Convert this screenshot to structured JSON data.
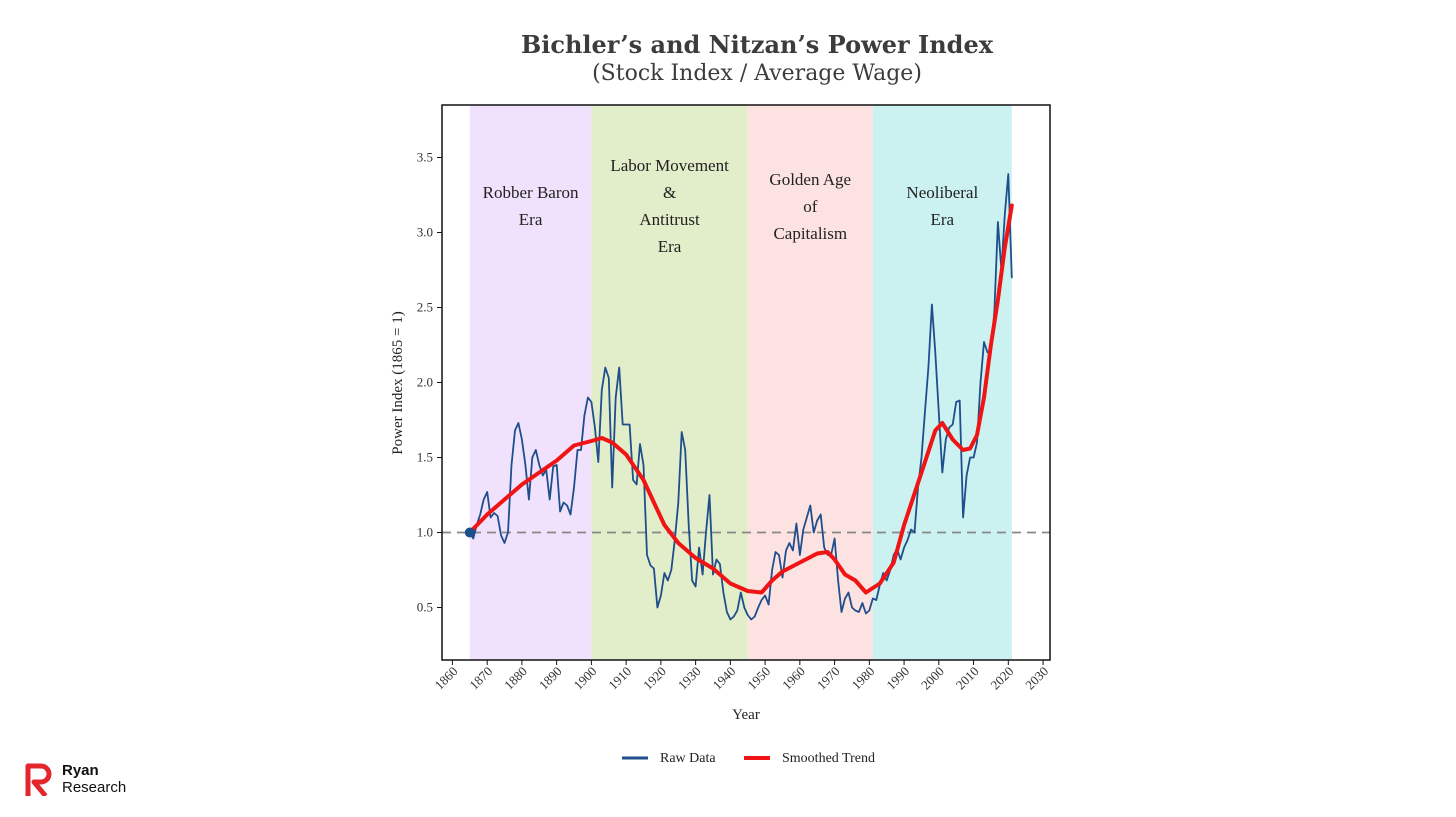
{
  "brand": {
    "name": "Ryan",
    "name2": "Research",
    "logo_icon": "ryan-research-r-logo-icon",
    "logo_color": "#e3262c"
  },
  "chart_data": {
    "type": "line",
    "title": "Bichler’s and Nitzan’s Power Index",
    "subtitle": "(Stock Index / Average Wage)",
    "xlabel": "Year",
    "ylabel": "Power Index (1865 = 1)",
    "xlim": [
      1857,
      2032
    ],
    "ylim": [
      0.15,
      3.85
    ],
    "x_ticks": [
      1860,
      1870,
      1880,
      1890,
      1900,
      1910,
      1920,
      1930,
      1940,
      1950,
      1960,
      1970,
      1980,
      1990,
      2000,
      2010,
      2020,
      2030
    ],
    "y_ticks": [
      0.5,
      1.0,
      1.5,
      2.0,
      2.5,
      3.0,
      3.5
    ],
    "y_tick_labels": [
      "0.5",
      "1.0",
      "1.5",
      "2.0",
      "2.5",
      "3.0",
      "3.5"
    ],
    "grid": false,
    "legend_position": "bottom",
    "reference_line": {
      "y": 1.0,
      "style": "dashed",
      "color": "#888888"
    },
    "start_marker": {
      "x": 1865,
      "y": 1.0,
      "color": "#1f4e8c"
    },
    "eras": [
      {
        "lines": [
          "Robber Baron",
          "Era"
        ],
        "start": 1865,
        "end": 1900,
        "color": "#f0e2fc"
      },
      {
        "lines": [
          "Labor Movement",
          "&",
          "Antitrust",
          "Era"
        ],
        "start": 1900,
        "end": 1945,
        "color": "#e2edca"
      },
      {
        "lines": [
          "Golden Age",
          "of",
          "Capitalism"
        ],
        "start": 1945,
        "end": 1981,
        "color": "#fde2e2"
      },
      {
        "lines": [
          "Neoliberal",
          "Era"
        ],
        "start": 1981,
        "end": 2021,
        "color": "#ccf1f1"
      }
    ],
    "series": [
      {
        "name": "Raw Data",
        "color": "#1f4e8c",
        "points": [
          [
            1865,
            1.0
          ],
          [
            1866,
            0.96
          ],
          [
            1867,
            1.05
          ],
          [
            1868,
            1.12
          ],
          [
            1869,
            1.22
          ],
          [
            1870,
            1.27
          ],
          [
            1871,
            1.1
          ],
          [
            1872,
            1.13
          ],
          [
            1873,
            1.11
          ],
          [
            1874,
            0.98
          ],
          [
            1875,
            0.93
          ],
          [
            1876,
            1.0
          ],
          [
            1877,
            1.45
          ],
          [
            1878,
            1.68
          ],
          [
            1879,
            1.73
          ],
          [
            1880,
            1.62
          ],
          [
            1881,
            1.45
          ],
          [
            1882,
            1.22
          ],
          [
            1883,
            1.5
          ],
          [
            1884,
            1.55
          ],
          [
            1885,
            1.45
          ],
          [
            1886,
            1.38
          ],
          [
            1887,
            1.42
          ],
          [
            1888,
            1.22
          ],
          [
            1889,
            1.44
          ],
          [
            1890,
            1.45
          ],
          [
            1891,
            1.14
          ],
          [
            1892,
            1.2
          ],
          [
            1893,
            1.18
          ],
          [
            1894,
            1.12
          ],
          [
            1895,
            1.3
          ],
          [
            1896,
            1.55
          ],
          [
            1897,
            1.55
          ],
          [
            1898,
            1.78
          ],
          [
            1899,
            1.9
          ],
          [
            1900,
            1.87
          ],
          [
            1901,
            1.7
          ],
          [
            1902,
            1.47
          ],
          [
            1903,
            1.95
          ],
          [
            1904,
            2.1
          ],
          [
            1905,
            2.03
          ],
          [
            1906,
            1.3
          ],
          [
            1907,
            1.9
          ],
          [
            1908,
            2.1
          ],
          [
            1909,
            1.72
          ],
          [
            1910,
            1.72
          ],
          [
            1911,
            1.72
          ],
          [
            1912,
            1.35
          ],
          [
            1913,
            1.32
          ],
          [
            1914,
            1.59
          ],
          [
            1915,
            1.45
          ],
          [
            1916,
            0.85
          ],
          [
            1917,
            0.78
          ],
          [
            1918,
            0.76
          ],
          [
            1919,
            0.5
          ],
          [
            1920,
            0.58
          ],
          [
            1921,
            0.73
          ],
          [
            1922,
            0.68
          ],
          [
            1923,
            0.75
          ],
          [
            1924,
            0.95
          ],
          [
            1925,
            1.2
          ],
          [
            1926,
            1.67
          ],
          [
            1927,
            1.55
          ],
          [
            1928,
            1.05
          ],
          [
            1929,
            0.68
          ],
          [
            1930,
            0.64
          ],
          [
            1931,
            0.9
          ],
          [
            1932,
            0.72
          ],
          [
            1933,
            1.0
          ],
          [
            1934,
            1.25
          ],
          [
            1935,
            0.72
          ],
          [
            1936,
            0.82
          ],
          [
            1937,
            0.79
          ],
          [
            1938,
            0.6
          ],
          [
            1939,
            0.47
          ],
          [
            1940,
            0.42
          ],
          [
            1941,
            0.44
          ],
          [
            1942,
            0.48
          ],
          [
            1943,
            0.6
          ],
          [
            1944,
            0.5
          ],
          [
            1945,
            0.45
          ],
          [
            1946,
            0.42
          ],
          [
            1947,
            0.44
          ],
          [
            1948,
            0.5
          ],
          [
            1949,
            0.55
          ],
          [
            1950,
            0.58
          ],
          [
            1951,
            0.52
          ],
          [
            1952,
            0.75
          ],
          [
            1953,
            0.87
          ],
          [
            1954,
            0.85
          ],
          [
            1955,
            0.7
          ],
          [
            1956,
            0.88
          ],
          [
            1957,
            0.93
          ],
          [
            1958,
            0.88
          ],
          [
            1959,
            1.06
          ],
          [
            1960,
            0.85
          ],
          [
            1961,
            1.02
          ],
          [
            1962,
            1.1
          ],
          [
            1963,
            1.18
          ],
          [
            1964,
            1.0
          ],
          [
            1965,
            1.08
          ],
          [
            1966,
            1.12
          ],
          [
            1967,
            0.9
          ],
          [
            1968,
            0.85
          ],
          [
            1969,
            0.85
          ],
          [
            1970,
            0.96
          ],
          [
            1971,
            0.68
          ],
          [
            1972,
            0.47
          ],
          [
            1973,
            0.56
          ],
          [
            1974,
            0.6
          ],
          [
            1975,
            0.5
          ],
          [
            1976,
            0.48
          ],
          [
            1977,
            0.47
          ],
          [
            1978,
            0.53
          ],
          [
            1979,
            0.46
          ],
          [
            1980,
            0.48
          ],
          [
            1981,
            0.56
          ],
          [
            1982,
            0.55
          ],
          [
            1983,
            0.65
          ],
          [
            1984,
            0.73
          ],
          [
            1985,
            0.68
          ],
          [
            1986,
            0.75
          ],
          [
            1987,
            0.85
          ],
          [
            1988,
            0.89
          ],
          [
            1989,
            0.82
          ],
          [
            1990,
            0.9
          ],
          [
            1991,
            0.95
          ],
          [
            1992,
            1.02
          ],
          [
            1993,
            1.0
          ],
          [
            1994,
            1.3
          ],
          [
            1995,
            1.5
          ],
          [
            1996,
            1.8
          ],
          [
            1997,
            2.1
          ],
          [
            1998,
            2.52
          ],
          [
            1999,
            2.2
          ],
          [
            2000,
            1.8
          ],
          [
            2001,
            1.4
          ],
          [
            2002,
            1.62
          ],
          [
            2003,
            1.7
          ],
          [
            2004,
            1.72
          ],
          [
            2005,
            1.87
          ],
          [
            2006,
            1.88
          ],
          [
            2007,
            1.1
          ],
          [
            2008,
            1.38
          ],
          [
            2009,
            1.5
          ],
          [
            2010,
            1.5
          ],
          [
            2011,
            1.6
          ],
          [
            2012,
            2.0
          ],
          [
            2013,
            2.27
          ],
          [
            2014,
            2.2
          ],
          [
            2015,
            2.2
          ],
          [
            2016,
            2.48
          ],
          [
            2017,
            3.07
          ],
          [
            2018,
            2.75
          ],
          [
            2019,
            3.12
          ],
          [
            2020,
            3.39
          ],
          [
            2021,
            2.7
          ]
        ]
      },
      {
        "name": "Smoothed Trend",
        "color": "#f01414",
        "points": [
          [
            1865,
            1.0
          ],
          [
            1870,
            1.12
          ],
          [
            1875,
            1.22
          ],
          [
            1880,
            1.32
          ],
          [
            1885,
            1.4
          ],
          [
            1890,
            1.48
          ],
          [
            1895,
            1.58
          ],
          [
            1900,
            1.61
          ],
          [
            1903,
            1.63
          ],
          [
            1906,
            1.6
          ],
          [
            1910,
            1.52
          ],
          [
            1915,
            1.35
          ],
          [
            1918,
            1.2
          ],
          [
            1921,
            1.05
          ],
          [
            1925,
            0.93
          ],
          [
            1930,
            0.83
          ],
          [
            1935,
            0.76
          ],
          [
            1940,
            0.66
          ],
          [
            1945,
            0.61
          ],
          [
            1949,
            0.6
          ],
          [
            1952,
            0.68
          ],
          [
            1955,
            0.74
          ],
          [
            1960,
            0.8
          ],
          [
            1965,
            0.86
          ],
          [
            1968,
            0.87
          ],
          [
            1970,
            0.82
          ],
          [
            1973,
            0.72
          ],
          [
            1976,
            0.68
          ],
          [
            1979,
            0.6
          ],
          [
            1983,
            0.66
          ],
          [
            1987,
            0.8
          ],
          [
            1990,
            1.05
          ],
          [
            1995,
            1.4
          ],
          [
            1999,
            1.68
          ],
          [
            2001,
            1.73
          ],
          [
            2004,
            1.62
          ],
          [
            2007,
            1.55
          ],
          [
            2009,
            1.56
          ],
          [
            2011,
            1.65
          ],
          [
            2013,
            1.9
          ],
          [
            2015,
            2.25
          ],
          [
            2017,
            2.55
          ],
          [
            2019,
            2.9
          ],
          [
            2021,
            3.18
          ]
        ]
      }
    ]
  }
}
